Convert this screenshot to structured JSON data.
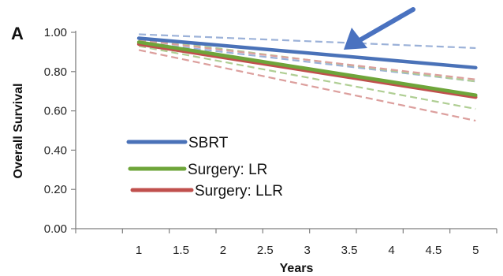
{
  "chart_data": {
    "type": "line",
    "panel_label": "A",
    "xlabel": "Years",
    "ylabel": "Overall Survival",
    "x": [
      1,
      5
    ],
    "x_ticks": [
      "1",
      "1.5",
      "2",
      "2.5",
      "3",
      "3.5",
      "4",
      "4.5",
      "5"
    ],
    "y_ticks": [
      "0.00",
      "0.20",
      "0.40",
      "0.60",
      "0.80",
      "1.00"
    ],
    "xlim": [
      0.25,
      5.25
    ],
    "ylim": [
      0,
      1
    ],
    "grid": false,
    "legend_position": "lower-left",
    "series": [
      {
        "name": "SBRT",
        "color": "#4a72b8",
        "values": [
          0.97,
          0.82
        ],
        "ci_lower": [
          0.95,
          0.75
        ],
        "ci_upper": [
          0.99,
          0.92
        ]
      },
      {
        "name": "Surgery: LR",
        "color": "#6ea53a",
        "values": [
          0.95,
          0.68
        ],
        "ci_lower": [
          0.93,
          0.61
        ],
        "ci_upper": [
          0.97,
          0.75
        ]
      },
      {
        "name": "Surgery: LLR",
        "color": "#c0504d",
        "values": [
          0.94,
          0.67
        ],
        "ci_lower": [
          0.91,
          0.55
        ],
        "ci_upper": [
          0.96,
          0.76
        ]
      }
    ],
    "annotation": {
      "type": "arrow",
      "color": "#4a72c0",
      "points_to_series": "SBRT"
    }
  }
}
